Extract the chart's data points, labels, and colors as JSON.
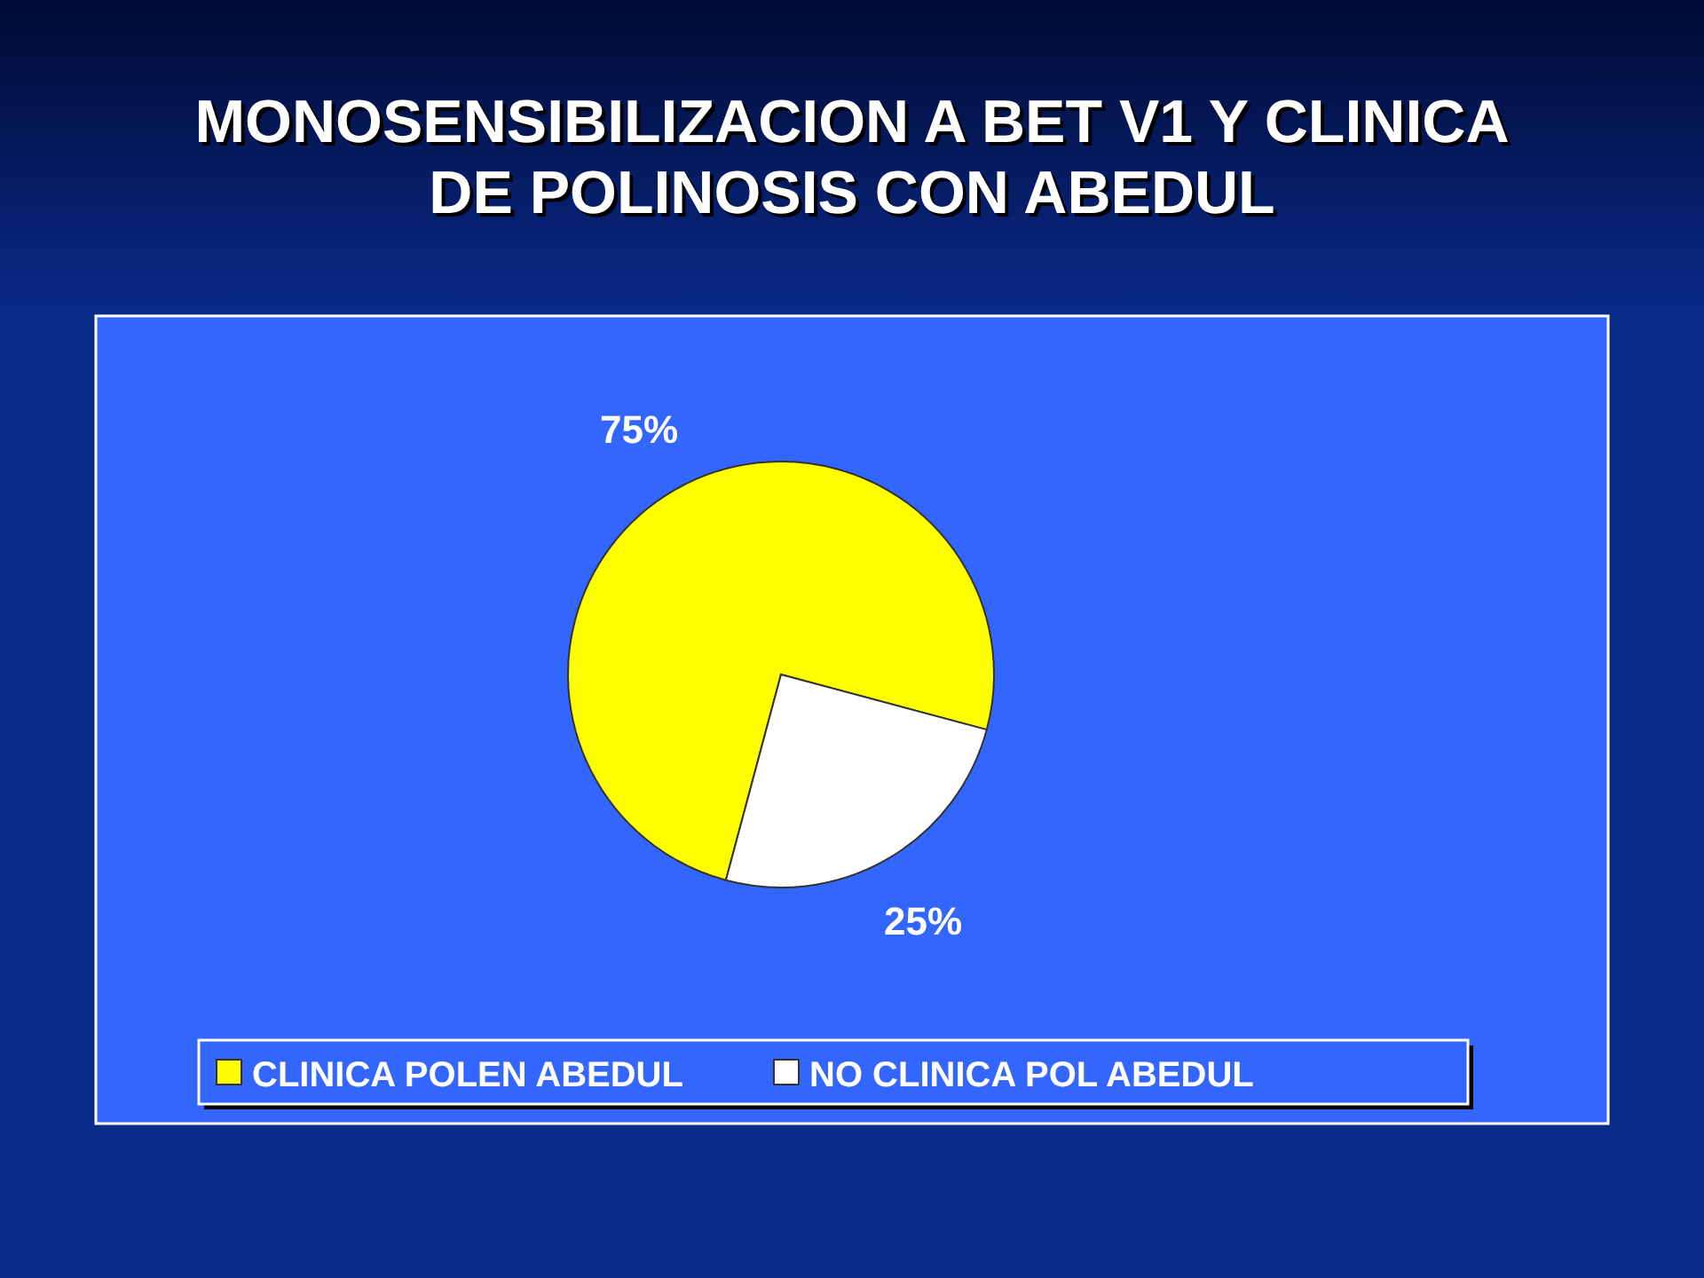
{
  "chart_data": {
    "type": "pie",
    "title": "MONOSENSIBILIZACION A BET V1 Y CLINICA\nDE POLINOSIS  CON ABEDUL",
    "categories": [
      "CLINICA POLEN ABEDUL",
      "NO CLINICA POL ABEDUL"
    ],
    "values": [
      75,
      25
    ],
    "colors": [
      "#ffff00",
      "#ffffff"
    ],
    "value_labels": [
      "75%",
      "25%"
    ],
    "legend": "bottom"
  }
}
